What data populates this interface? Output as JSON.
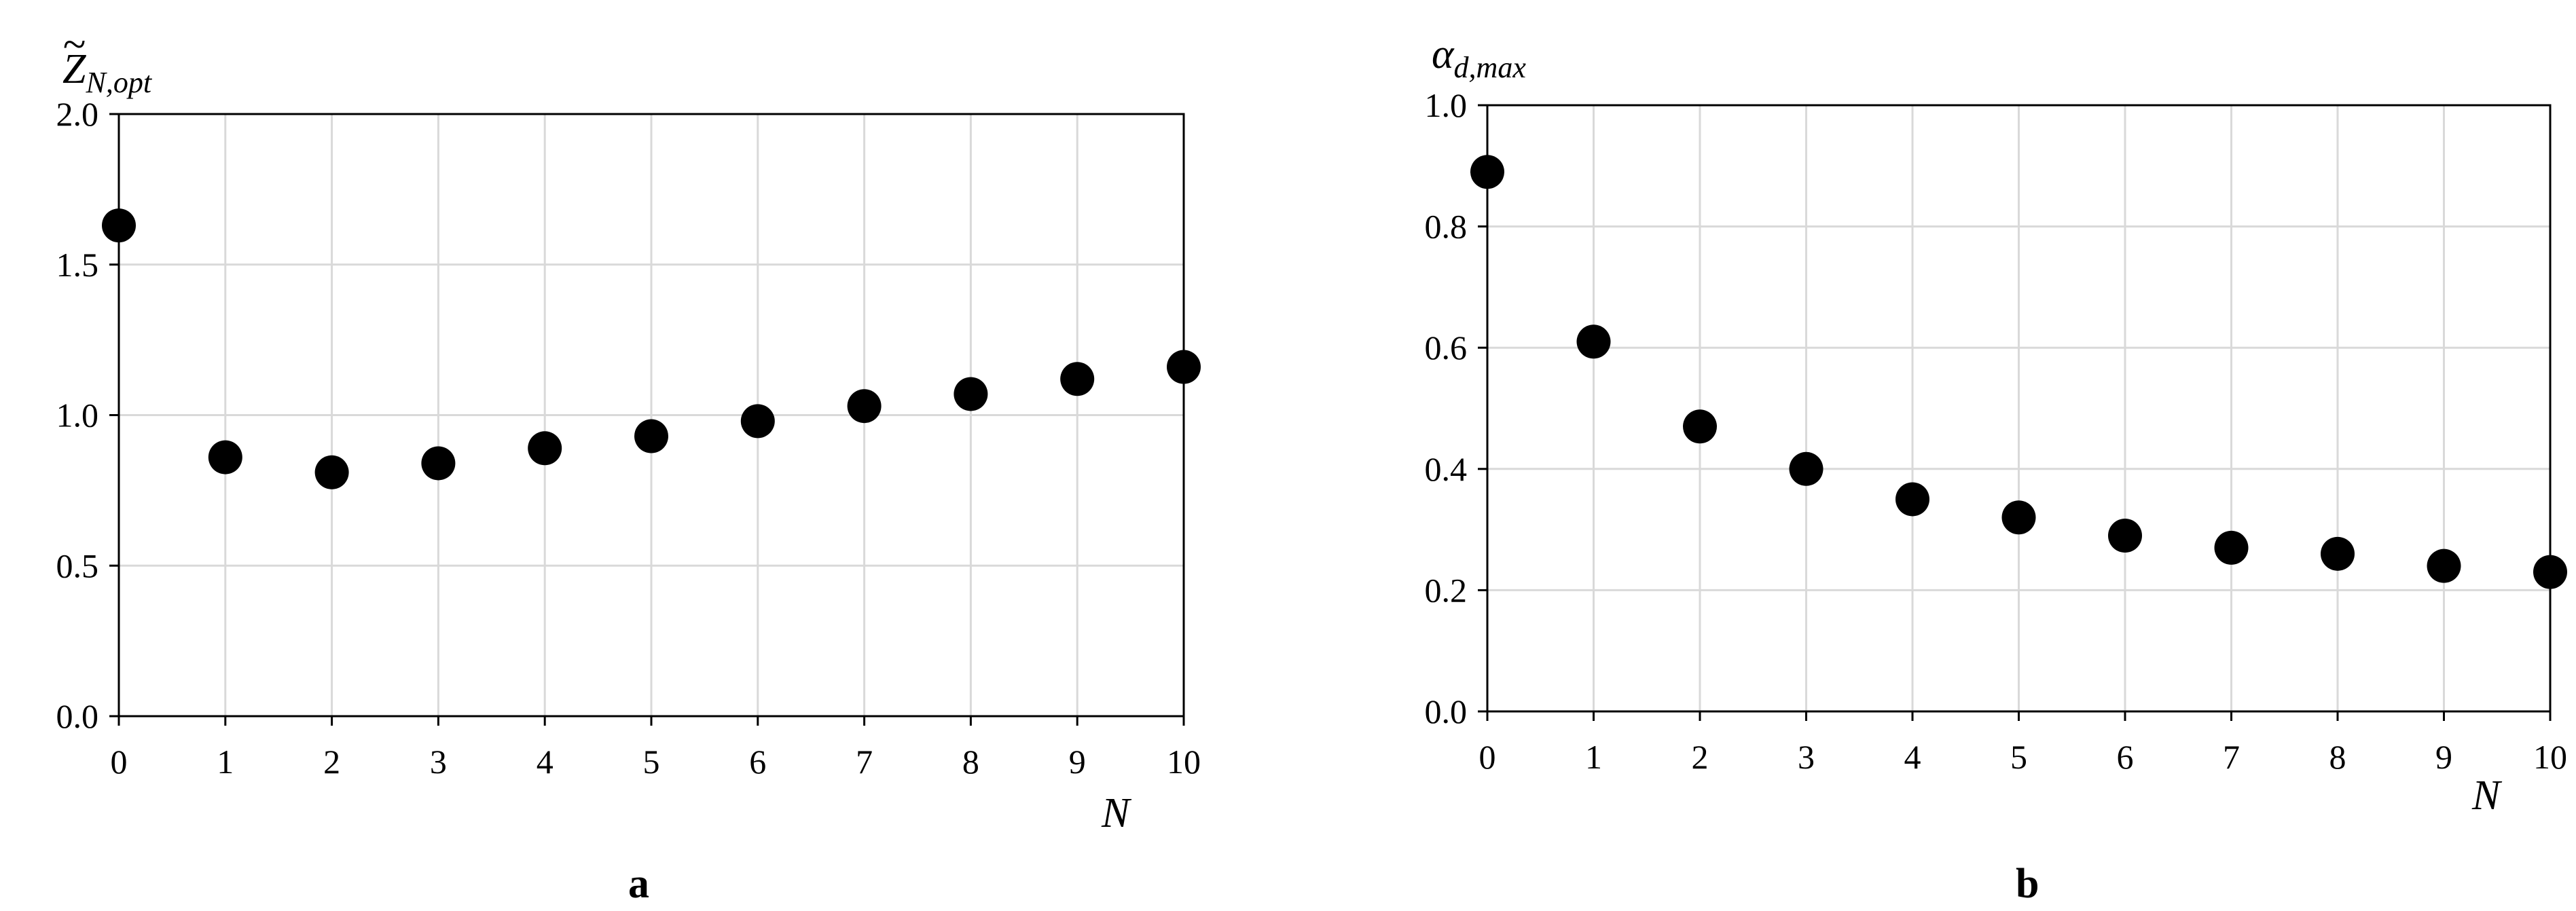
{
  "chart_data": [
    {
      "type": "scatter",
      "panel_label": "a",
      "ylabel": {
        "base": "Z",
        "accent": "~",
        "subscript": "N,opt"
      },
      "xlabel": "N",
      "xlim": [
        0,
        10
      ],
      "ylim": [
        0,
        2
      ],
      "xticks": [
        "0",
        "1",
        "2",
        "3",
        "4",
        "5",
        "6",
        "7",
        "8",
        "9",
        "10"
      ],
      "yticks": [
        "0.0",
        "0.5",
        "1.0",
        "1.5",
        "2.0"
      ],
      "grid": true,
      "marker_color": "#000000",
      "x": [
        0,
        1,
        2,
        3,
        4,
        5,
        6,
        7,
        8,
        9,
        10
      ],
      "values": [
        1.63,
        0.86,
        0.81,
        0.84,
        0.89,
        0.93,
        0.98,
        1.03,
        1.07,
        1.12,
        1.16
      ]
    },
    {
      "type": "scatter",
      "panel_label": "b",
      "ylabel": {
        "base": "α",
        "accent": "",
        "subscript": "d,max"
      },
      "xlabel": "N",
      "xlim": [
        0,
        10
      ],
      "ylim": [
        0,
        1
      ],
      "xticks": [
        "0",
        "1",
        "2",
        "3",
        "4",
        "5",
        "6",
        "7",
        "8",
        "9",
        "10"
      ],
      "yticks": [
        "0.0",
        "0.2",
        "0.4",
        "0.6",
        "0.8",
        "1.0"
      ],
      "grid": true,
      "marker_color": "#000000",
      "x": [
        0,
        1,
        2,
        3,
        4,
        5,
        6,
        7,
        8,
        9,
        10
      ],
      "values": [
        0.89,
        0.61,
        0.47,
        0.4,
        0.35,
        0.32,
        0.29,
        0.27,
        0.26,
        0.24,
        0.23
      ]
    }
  ]
}
